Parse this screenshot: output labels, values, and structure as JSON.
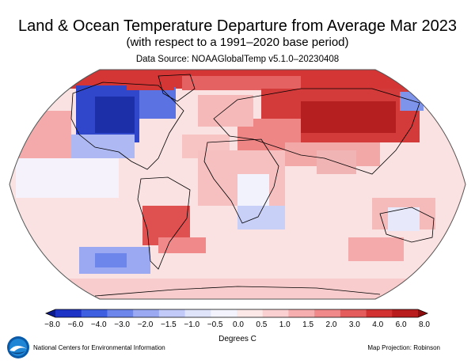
{
  "header": {
    "title": "Land & Ocean Temperature Departure from Average Mar 2023",
    "subtitle": "(with respect to a 1991–2020 base period)",
    "source": "Data Source: NOAAGlobalTemp v5.1.0–20230408"
  },
  "colorbar": {
    "ticks": [
      "−8.0",
      "−6.0",
      "−4.0",
      "−3.0",
      "−2.0",
      "−1.5",
      "−1.0",
      "−0.5",
      "0.0",
      "0.5",
      "1.0",
      "1.5",
      "2.0",
      "3.0",
      "4.0",
      "6.0",
      "8.0"
    ],
    "colors": [
      "#0b1a8c",
      "#1d33c6",
      "#3d5fe0",
      "#6d86ec",
      "#9aa9f2",
      "#c2cbf7",
      "#dfe4fb",
      "#f2f3fd",
      "#fde8e8",
      "#fbd0d0",
      "#f7aeae",
      "#f08a8a",
      "#e45c5c",
      "#d33232",
      "#b81c1c",
      "#8c0d0d"
    ],
    "units": "Degrees C"
  },
  "footer": {
    "org": "National Centers for Environmental Information",
    "projection": "Map Projection: Robinson"
  },
  "map": {
    "projection": "Robinson",
    "ocean_base_color": "#fbe2e2",
    "land_outline_color": "#000000"
  }
}
